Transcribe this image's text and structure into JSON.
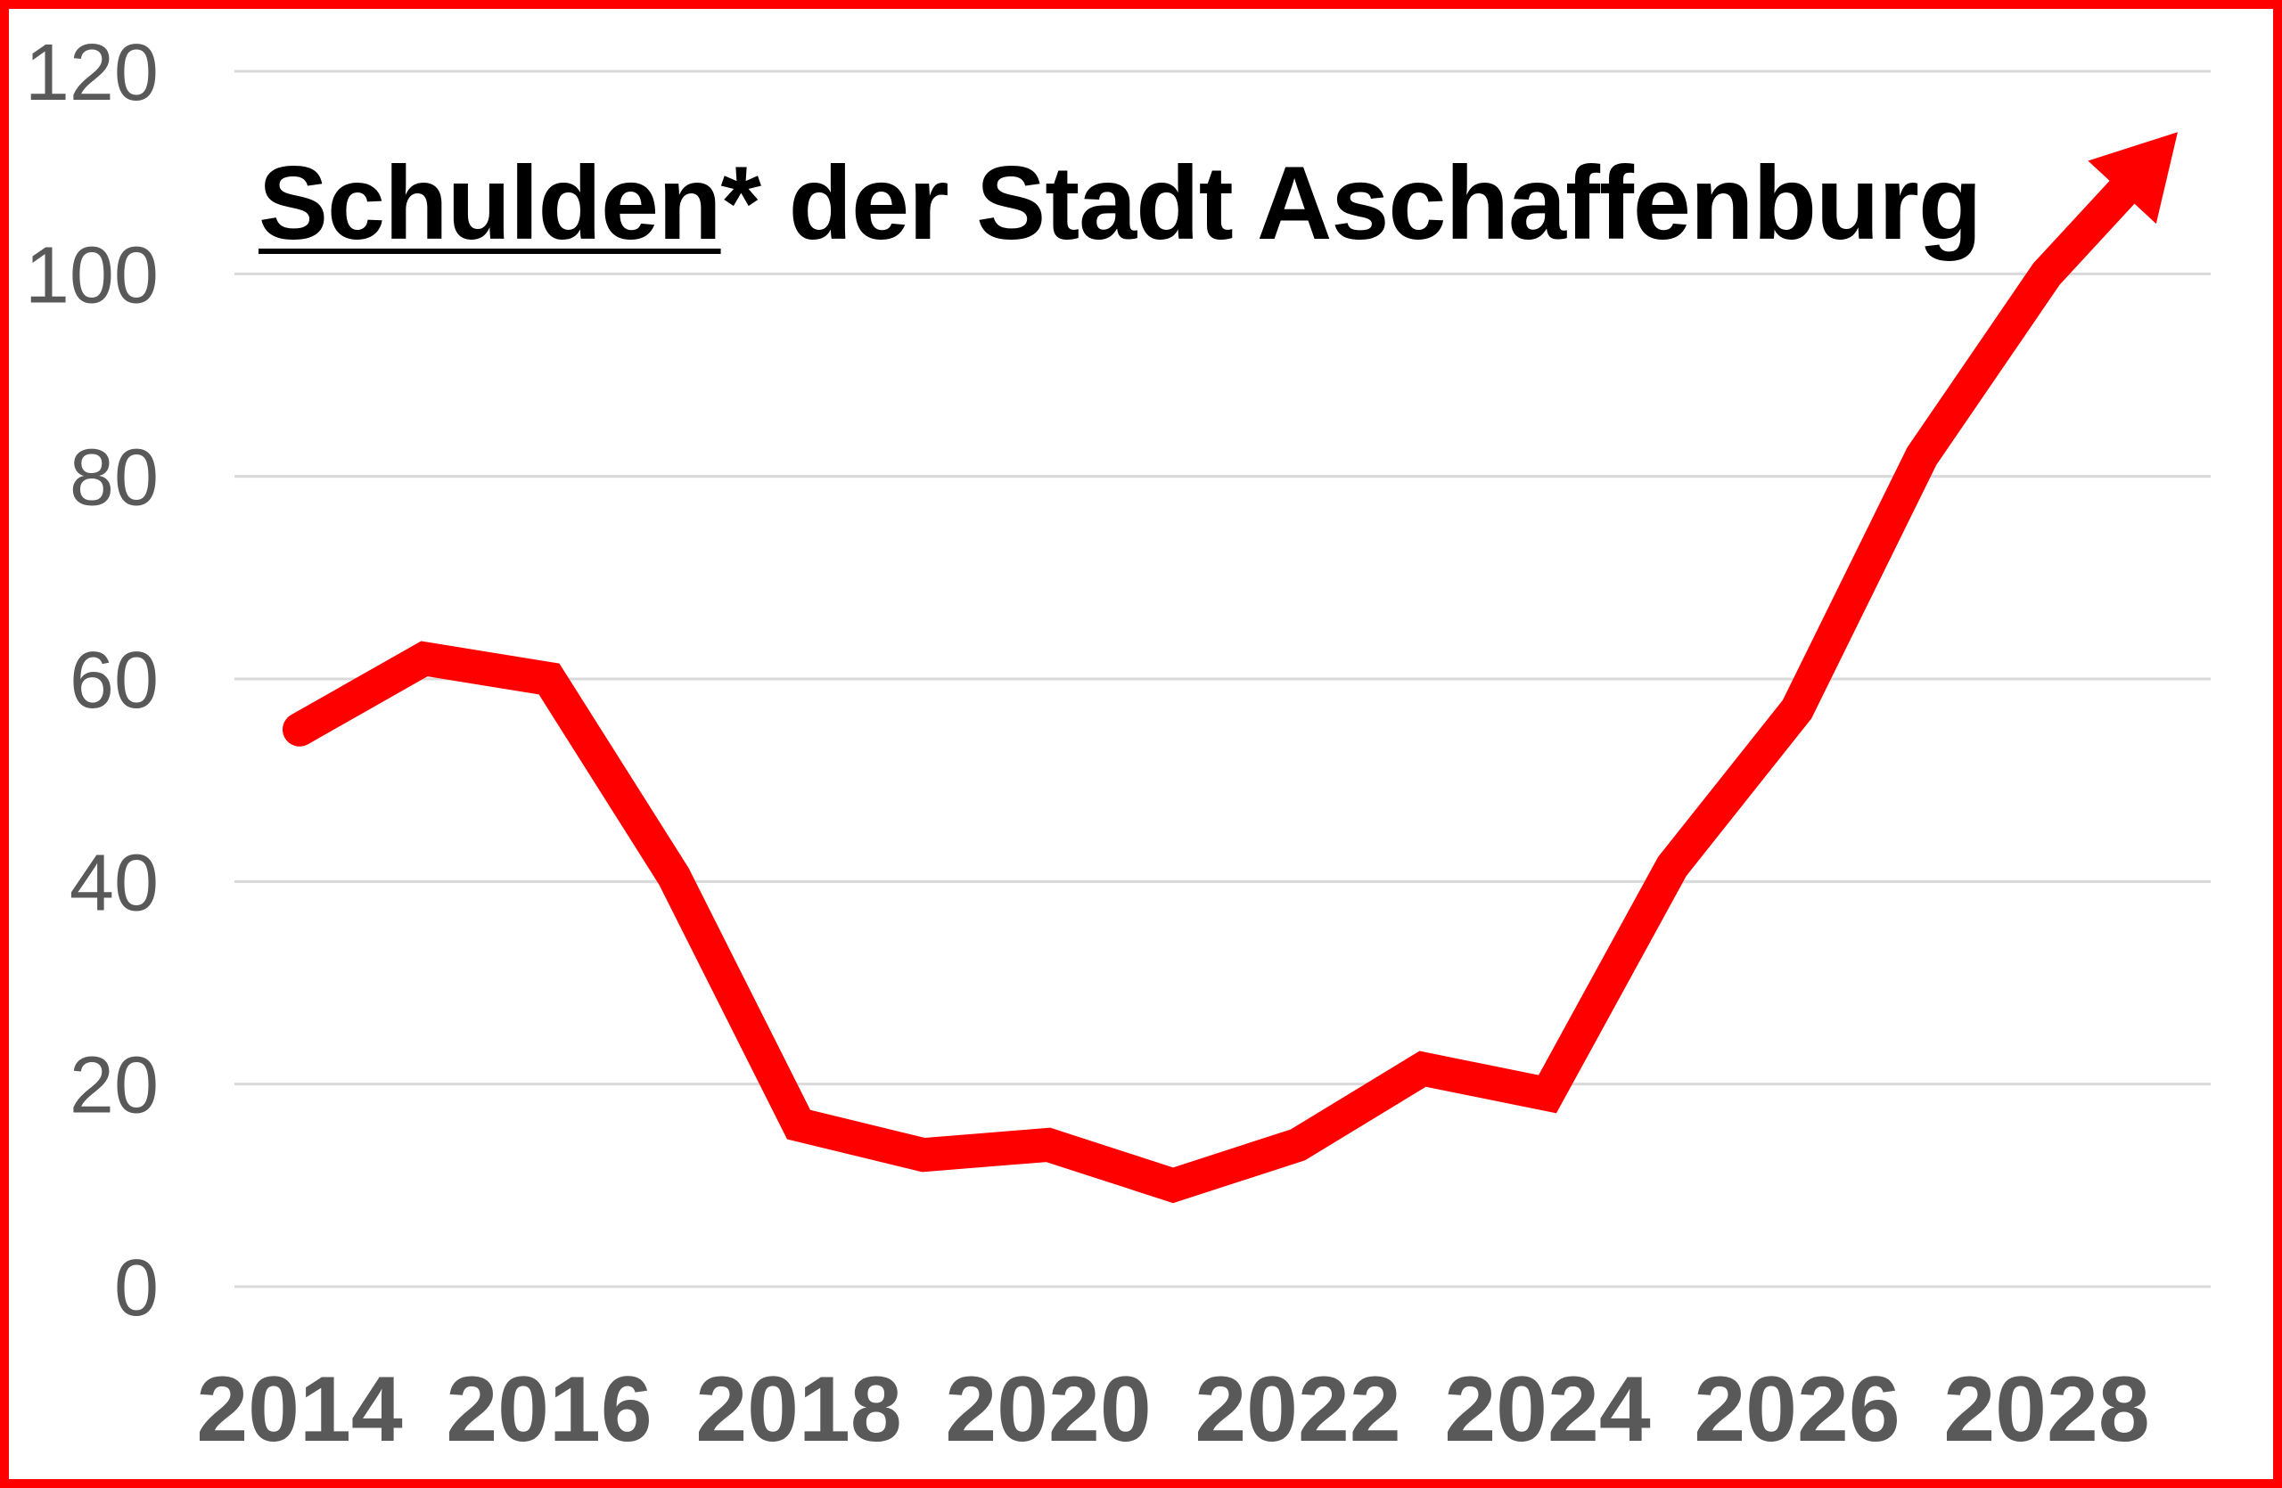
{
  "chart_data": {
    "type": "line",
    "title": "Schulden* der Stadt Aschaffenburg",
    "title_underlined_part": "Schulden",
    "xlabel": "",
    "ylabel": "",
    "x": [
      2014,
      2015,
      2016,
      2017,
      2018,
      2019,
      2020,
      2021,
      2022,
      2023,
      2024,
      2025,
      2026,
      2027,
      2028
    ],
    "series": [
      {
        "name": "Schulden*",
        "values": [
          55,
          62,
          60,
          40.5,
          16,
          13,
          14,
          10,
          14,
          21.5,
          19,
          41.5,
          57,
          82,
          100
        ]
      }
    ],
    "xtick_labels": [
      "2014",
      "2016",
      "2018",
      "2020",
      "2022",
      "2024",
      "2026",
      "2028"
    ],
    "xtick_years": [
      2014,
      2016,
      2018,
      2020,
      2022,
      2024,
      2026,
      2028
    ],
    "ytick_labels": [
      "0",
      "20",
      "40",
      "60",
      "80",
      "100",
      "120"
    ],
    "ytick_values": [
      0,
      20,
      40,
      60,
      80,
      100,
      120
    ],
    "ylim": [
      0,
      120
    ],
    "grid": "horizontal-only",
    "legend": "none",
    "trend_arrow": {
      "ends_at_x": 2029.05,
      "ends_at_value": 114,
      "direction": "up-right"
    },
    "colors": {
      "line": "#FF0000",
      "frame_border": "#FF0000",
      "gridlines": "#D9D9D9",
      "tick_labels": "#595959",
      "title": "#000000",
      "background": "#FFFFFF"
    }
  }
}
